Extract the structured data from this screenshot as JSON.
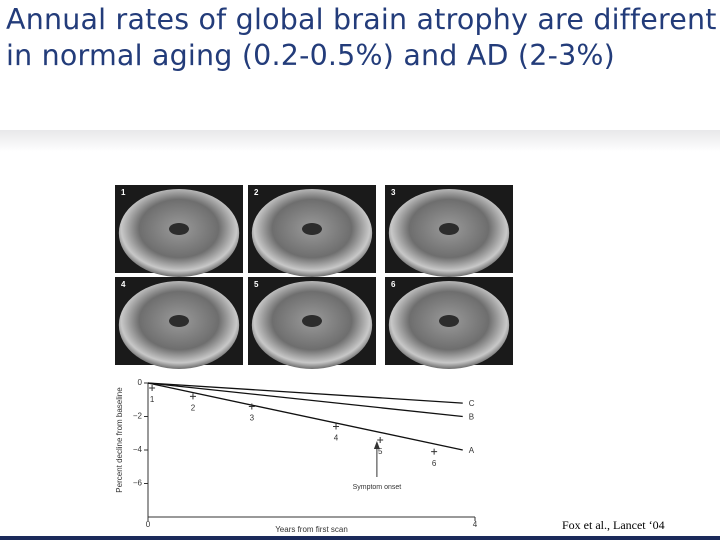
{
  "header": {
    "title": "Annual rates of global brain atrophy are different in normal aging (0.2-0.5%) and AD (2-3%)"
  },
  "images": {
    "labels": [
      "1",
      "2",
      "3",
      "4",
      "5",
      "6"
    ]
  },
  "chart_data": {
    "type": "line",
    "ylabel": "Percent decline from baseline",
    "xlabel": "Years from first scan",
    "xlim": [
      0,
      4
    ],
    "ylim": [
      -8,
      0
    ],
    "xticks": [
      0,
      4
    ],
    "yticks": [
      0,
      {
        "value": -2,
        "label": "−2"
      },
      {
        "value": -4,
        "label": "−4"
      },
      {
        "value": -6,
        "label": "−6"
      }
    ],
    "series": [
      {
        "name": "C",
        "color": "#111111",
        "x": [
          0,
          3.85
        ],
        "values": [
          0,
          -1.2
        ]
      },
      {
        "name": "B",
        "color": "#111111",
        "x": [
          0,
          3.85
        ],
        "values": [
          0,
          -2.0
        ]
      },
      {
        "name": "A",
        "color": "#111111",
        "x": [
          0,
          3.85
        ],
        "values": [
          0,
          -4.0
        ]
      }
    ],
    "scans": {
      "labels": [
        "1",
        "2",
        "3",
        "4",
        "5",
        "6"
      ],
      "x": [
        0.05,
        0.55,
        1.27,
        2.3,
        2.84,
        3.5
      ],
      "values": [
        -0.3,
        -0.8,
        -1.4,
        -2.6,
        -3.4,
        -4.1
      ]
    },
    "annotation": {
      "text": "Symptom onset",
      "x": 2.8
    }
  },
  "citation": "Fox et al., Lancet ‘04"
}
